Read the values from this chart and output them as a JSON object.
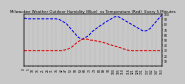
{
  "title": "Milwaukee Weather Outdoor Humidity (Blue)  vs Temperature (Red)  Every 5 Minutes",
  "title_fontsize": 2.8,
  "background_color": "#c8c8c8",
  "plot_bg_color": "#c8c8c8",
  "humidity": [
    92,
    92,
    92,
    91,
    91,
    91,
    91,
    91,
    91,
    91,
    91,
    91,
    91,
    91,
    91,
    91,
    91,
    91,
    91,
    91,
    91,
    91,
    91,
    91,
    91,
    91,
    91,
    91,
    91,
    91,
    91,
    91,
    91,
    91,
    91,
    91,
    91,
    90,
    90,
    90,
    89,
    88,
    87,
    86,
    85,
    84,
    83,
    82,
    80,
    78,
    76,
    74,
    72,
    70,
    68,
    66,
    64,
    62,
    60,
    58,
    56,
    55,
    54,
    53,
    52,
    52,
    53,
    54,
    55,
    56,
    57,
    58,
    59,
    61,
    63,
    65,
    67,
    68,
    69,
    70,
    72,
    73,
    75,
    76,
    77,
    78,
    79,
    80,
    81,
    83,
    84,
    85,
    86,
    87,
    88,
    89,
    90,
    91,
    92,
    93,
    94,
    95,
    95,
    95,
    95,
    95,
    94,
    93,
    92,
    91,
    90,
    89,
    88,
    87,
    86,
    85,
    84,
    83,
    82,
    81,
    80,
    79,
    78,
    77,
    76,
    75,
    74,
    73,
    72,
    71,
    70,
    69,
    68,
    68,
    68,
    68,
    68,
    69,
    70,
    71,
    72,
    74,
    76,
    78,
    80,
    82,
    84,
    86,
    88,
    90,
    92,
    94,
    96,
    98
  ],
  "temperature": [
    30,
    30,
    30,
    30,
    30,
    30,
    30,
    30,
    30,
    30,
    30,
    30,
    30,
    30,
    30,
    30,
    30,
    30,
    30,
    30,
    30,
    30,
    30,
    30,
    30,
    30,
    30,
    30,
    30,
    30,
    30,
    30,
    30,
    30,
    30,
    30,
    30,
    30,
    30,
    30,
    30,
    30,
    30,
    31,
    31,
    31,
    32,
    32,
    33,
    33,
    34,
    35,
    36,
    37,
    38,
    40,
    41,
    43,
    44,
    46,
    47,
    48,
    49,
    50,
    51,
    52,
    52,
    52,
    52,
    52,
    52,
    52,
    51,
    51,
    50,
    50,
    50,
    50,
    49,
    49,
    49,
    48,
    48,
    48,
    47,
    47,
    47,
    46,
    46,
    45,
    45,
    44,
    44,
    43,
    42,
    42,
    41,
    41,
    40,
    40,
    39,
    39,
    38,
    38,
    37,
    37,
    36,
    36,
    35,
    35,
    34,
    33,
    33,
    32,
    32,
    31,
    31,
    30,
    30,
    30,
    30,
    30,
    30,
    30,
    30,
    30,
    30,
    30,
    30,
    30,
    30,
    30,
    30,
    30,
    30,
    30,
    30,
    30,
    30,
    30,
    30,
    30,
    30,
    30,
    30,
    30,
    30,
    30,
    30,
    30,
    30,
    30,
    30,
    30
  ],
  "ylim": [
    0,
    100
  ],
  "y_right_ticks": [
    10,
    20,
    30,
    40,
    50,
    60,
    70,
    80,
    90,
    100
  ],
  "y_right_labels": [
    "10",
    "20",
    "30",
    "40",
    "50",
    "60",
    "70",
    "80",
    "90",
    "100"
  ],
  "humidity_color": "#0000ee",
  "temperature_color": "#dd0000",
  "grid_color": "#999999",
  "tick_fontsize": 2.2,
  "linewidth": 0.7
}
